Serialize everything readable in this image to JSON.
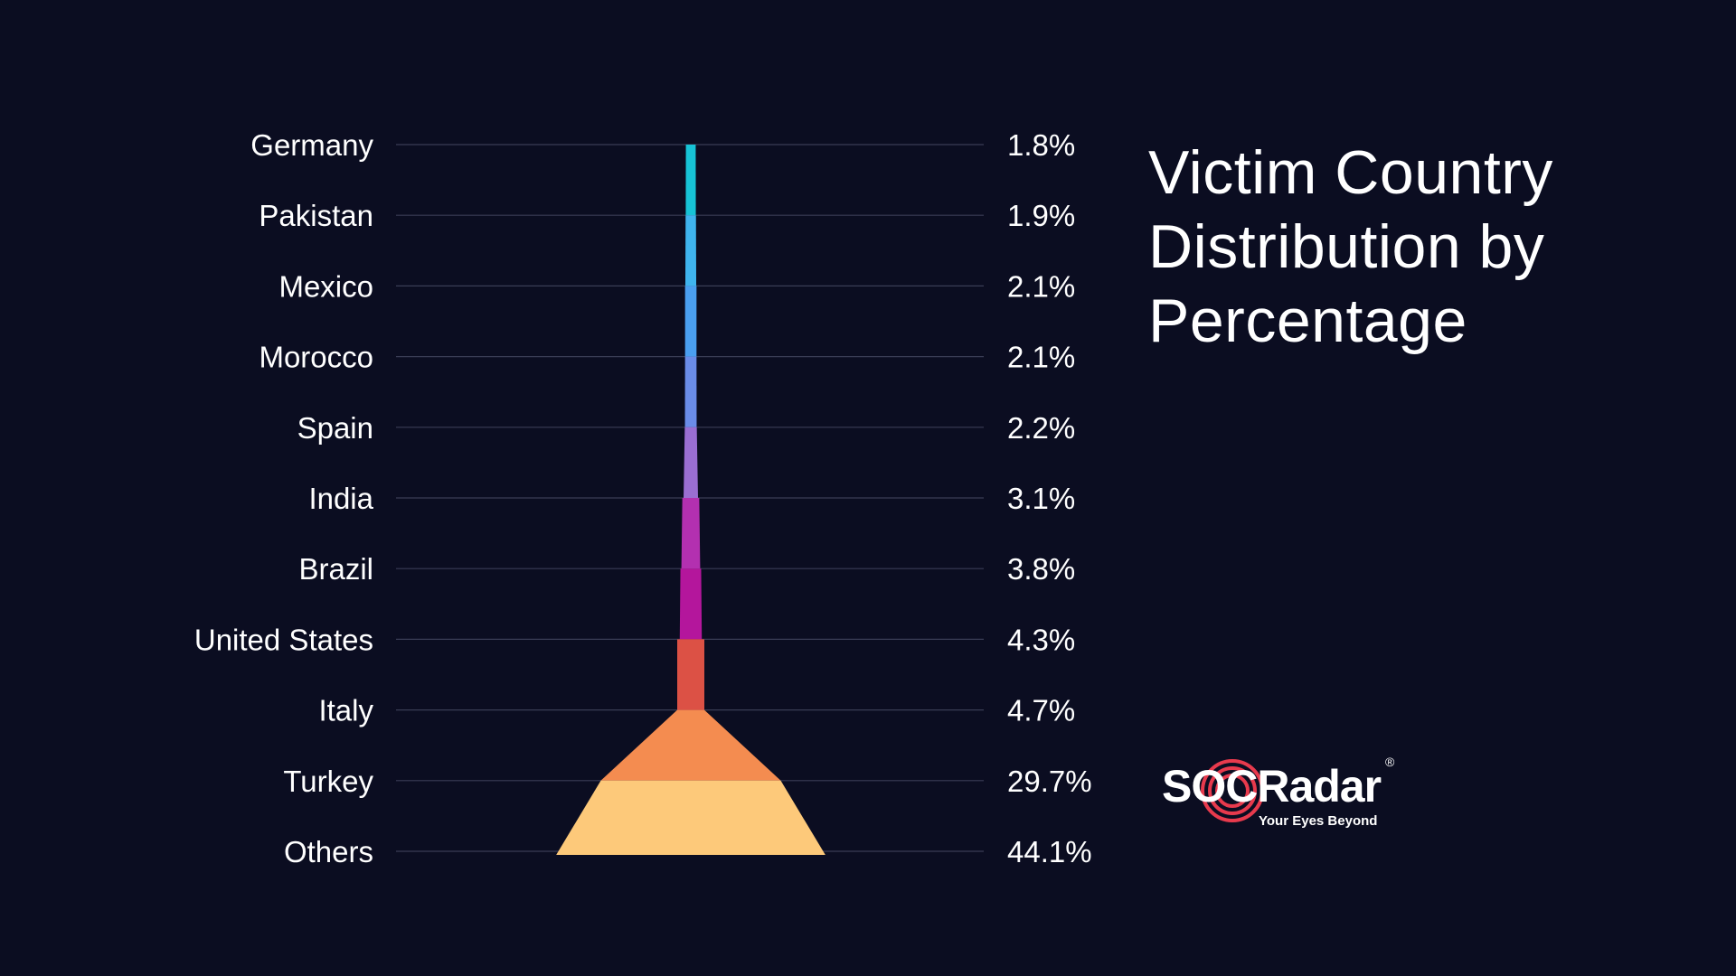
{
  "chart_data": {
    "type": "funnel",
    "title": "Victim Country Distribution by Percentage",
    "categories": [
      "Germany",
      "Pakistan",
      "Mexico",
      "Morocco",
      "Spain",
      "India",
      "Brazil",
      "United States",
      "Italy",
      "Turkey",
      "Others"
    ],
    "values": [
      1.8,
      1.9,
      2.1,
      2.1,
      2.2,
      3.1,
      3.8,
      4.3,
      4.7,
      29.7,
      44.1
    ],
    "value_labels": [
      "1.8%",
      "1.9%",
      "2.1%",
      "2.1%",
      "2.2%",
      "3.1%",
      "3.8%",
      "4.3%",
      "4.7%",
      "29.7%",
      "44.1%"
    ],
    "colors": [
      "#17c3d6",
      "#3fb4ee",
      "#4a9ff0",
      "#6a8ce8",
      "#9a6ed2",
      "#b330b0",
      "#b4169c",
      "#d10a58",
      "#dc5145",
      "#f48c50",
      "#fdc97a"
    ],
    "grid": true
  },
  "logo": {
    "text": "SOCRadar",
    "tagline": "Your Eyes Beyond",
    "registered": "®",
    "ring_color": "#e83a4d"
  }
}
